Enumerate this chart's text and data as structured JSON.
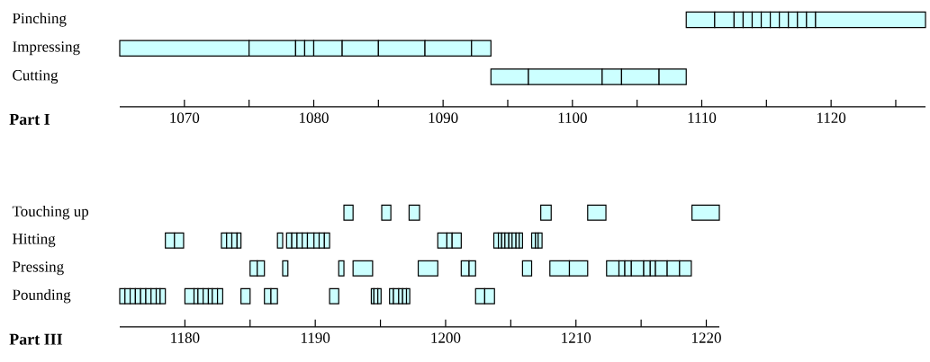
{
  "chart_data": [
    {
      "type": "bar",
      "orientation": "horizontal",
      "xlabel": "**Part I**",
      "color": "#ccffff",
      "categories": [
        "Pinching",
        "Impressing",
        "Cutting"
      ],
      "xlim": [
        1065,
        1127.3
      ],
      "xticks": [
        1070,
        {
          "value": 1075,
          "label": null
        },
        1080,
        {
          "value": 1085,
          "label": null
        },
        1090,
        {
          "value": 1095,
          "label": null
        },
        1100,
        {
          "value": 1105,
          "label": null
        },
        1110,
        {
          "value": 1115,
          "label": null
        },
        1120,
        {
          "value": 1125,
          "label": null
        }
      ],
      "series": [
        {
          "base": [
            1108.8,
            1065,
            1093.7
          ],
          "values": [
            2.2,
            10,
            2.9
          ]
        },
        {
          "base": [
            1111.0,
            1075,
            1096.6
          ],
          "values": [
            1.5,
            3.6,
            5.7
          ]
        },
        {
          "base": [
            1112.5,
            1078.6,
            1102.3
          ],
          "values": [
            0.7,
            0.7,
            1.5
          ]
        },
        {
          "base": [
            1113.2,
            1079.3,
            1103.8
          ],
          "values": [
            0.7,
            0.7,
            2.9
          ]
        },
        {
          "base": [
            1113.9,
            1080,
            1106.7
          ],
          "values": [
            0.7,
            2.2,
            2.1
          ]
        },
        {
          "base": [
            1114.6,
            1082.2,
            null
          ],
          "values": [
            0.7,
            2.8,
            null
          ]
        },
        {
          "base": [
            1115.3,
            1085,
            null
          ],
          "values": [
            0.7,
            3.6,
            null
          ]
        },
        {
          "base": [
            1116.0,
            1088.6,
            null
          ],
          "values": [
            0.7,
            3.6,
            null
          ]
        },
        {
          "base": [
            1116.7,
            1092.2,
            null
          ],
          "values": [
            0.7,
            1.5,
            null
          ]
        },
        {
          "base": [
            1117.4,
            null,
            null
          ],
          "values": [
            0.7,
            null,
            null
          ]
        },
        {
          "base": [
            1118.1,
            null,
            null
          ],
          "values": [
            0.7,
            null,
            null
          ]
        },
        {
          "base": [
            1118.8,
            null,
            null
          ],
          "values": [
            8.5,
            null,
            null
          ]
        }
      ]
    },
    {
      "type": "bar",
      "orientation": "horizontal",
      "xlabel": "**Part III**",
      "color": "#ccffff",
      "categories": [
        "Touching up",
        "Hitting",
        "Pressing",
        "Pounding"
      ],
      "xlim": [
        1175,
        1221
      ],
      "xticks": [
        1180,
        {
          "value": 1185,
          "label": null
        },
        1190,
        {
          "value": 1195,
          "label": null
        },
        1200,
        {
          "value": 1205,
          "label": null
        },
        1210,
        {
          "value": 1215,
          "label": null
        },
        1220
      ],
      "series": [
        {
          "base": [
            1192.2,
            1178.5,
            1185.0,
            1175
          ],
          "values": [
            0.7,
            0.7,
            0.55,
            0.4
          ]
        },
        {
          "base": [
            1195.1,
            1179.2,
            1185.55,
            1175.4
          ],
          "values": [
            0.7,
            0.7,
            0.55,
            0.4
          ]
        },
        {
          "base": [
            1197.2,
            1182.8,
            1187.5,
            1175.8
          ],
          "values": [
            0.8,
            0.4,
            0.4,
            0.4
          ]
        },
        {
          "base": [
            1207.3,
            1183.2,
            1191.8,
            1176.2
          ],
          "values": [
            0.8,
            0.4,
            0.4,
            0.4
          ]
        },
        {
          "base": [
            1210.9,
            1183.6,
            1192.9,
            1176.6
          ],
          "values": [
            1.4,
            0.4,
            1.5,
            0.4
          ]
        },
        {
          "base": [
            1218.9,
            1184.0,
            1197.9,
            1177.0
          ],
          "values": [
            2.1,
            0.3,
            1.5,
            0.4
          ]
        },
        {
          "base": [
            null,
            1187.1,
            1201.2,
            1177.4
          ],
          "values": [
            null,
            0.4,
            0.6,
            0.4
          ]
        },
        {
          "base": [
            null,
            1187.8,
            1201.8,
            1177.8
          ],
          "values": [
            null,
            0.4,
            0.5,
            0.3
          ]
        },
        {
          "base": [
            null,
            1188.2,
            1205.9,
            1178.1
          ],
          "values": [
            null,
            0.4,
            0.7,
            0.4
          ]
        },
        {
          "base": [
            null,
            1188.6,
            1208.0,
            1180.0
          ],
          "values": [
            null,
            0.4,
            1.5,
            0.7
          ]
        },
        {
          "base": [
            null,
            1189.0,
            1209.5,
            1180.7
          ],
          "values": [
            null,
            0.4,
            1.4,
            0.3
          ]
        },
        {
          "base": [
            null,
            1189.4,
            1212.35,
            1181.0
          ],
          "values": [
            null,
            0.5,
            0.95,
            0.4
          ]
        },
        {
          "base": [
            null,
            1189.9,
            1213.3,
            1181.4
          ],
          "values": [
            null,
            0.4,
            0.45,
            0.4
          ]
        },
        {
          "base": [
            null,
            1190.3,
            1213.75,
            1181.8
          ],
          "values": [
            null,
            0.4,
            0.5,
            0.3
          ]
        },
        {
          "base": [
            null,
            1190.7,
            1214.25,
            1182.1
          ],
          "values": [
            null,
            0.4,
            0.95,
            0.4
          ]
        },
        {
          "base": [
            null,
            1199.4,
            1215.2,
            1182.5
          ],
          "values": [
            null,
            0.7,
            0.5,
            0.4
          ]
        },
        {
          "base": [
            null,
            1200.1,
            1215.7,
            1184.3
          ],
          "values": [
            null,
            0.4,
            0.4,
            0.7
          ]
        },
        {
          "base": [
            null,
            1200.5,
            1216.1,
            1186.1
          ],
          "values": [
            null,
            0.7,
            0.9,
            0.5
          ]
        },
        {
          "base": [
            null,
            1203.7,
            1217.0,
            1186.6
          ],
          "values": [
            null,
            0.35,
            0.95,
            0.5
          ]
        },
        {
          "base": [
            null,
            1204.05,
            1217.95,
            1191.1
          ],
          "values": [
            null,
            0.25,
            0.9,
            0.7
          ]
        },
        {
          "base": [
            null,
            1204.3,
            null,
            1194.3
          ],
          "values": [
            null,
            0.25,
            null,
            0.2
          ]
        },
        {
          "base": [
            null,
            1204.55,
            null,
            1194.5
          ],
          "values": [
            null,
            0.3,
            null,
            0.3
          ]
        },
        {
          "base": [
            null,
            1204.85,
            null,
            1194.8
          ],
          "values": [
            null,
            0.25,
            null,
            0.25
          ]
        },
        {
          "base": [
            null,
            1205.1,
            null,
            1195.7
          ],
          "values": [
            null,
            0.3,
            null,
            0.3
          ]
        },
        {
          "base": [
            null,
            1205.4,
            null,
            1196.0
          ],
          "values": [
            null,
            0.25,
            null,
            0.4
          ]
        },
        {
          "base": [
            null,
            1205.65,
            null,
            1196.4
          ],
          "values": [
            null,
            0.25,
            null,
            0.3
          ]
        },
        {
          "base": [
            null,
            1206.6,
            null,
            1196.7
          ],
          "values": [
            null,
            0.3,
            null,
            0.3
          ]
        },
        {
          "base": [
            null,
            1206.9,
            null,
            1197.0
          ],
          "values": [
            null,
            0.2,
            null,
            0.25
          ]
        },
        {
          "base": [
            null,
            1207.1,
            null,
            1202.3
          ],
          "values": [
            null,
            0.3,
            null,
            0.7
          ]
        },
        {
          "base": [
            null,
            null,
            null,
            1203.0
          ],
          "values": [
            null,
            null,
            null,
            0.75
          ]
        }
      ]
    }
  ]
}
